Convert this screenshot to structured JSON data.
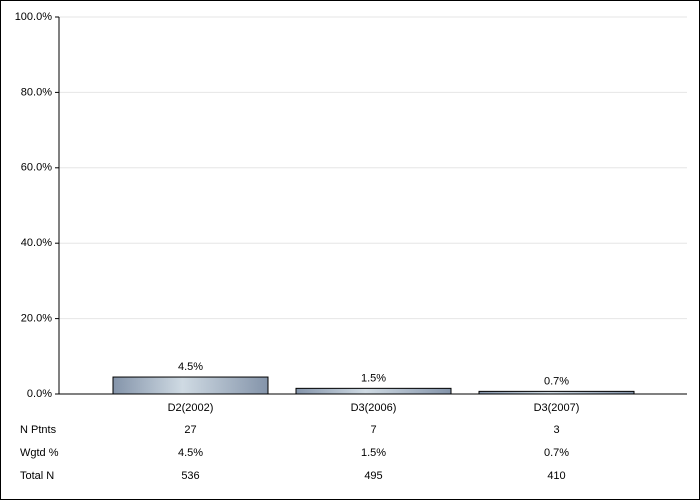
{
  "chart_data": {
    "type": "bar",
    "categories": [
      "D2(2002)",
      "D3(2006)",
      "D3(2007)"
    ],
    "values": [
      4.5,
      1.5,
      0.7
    ],
    "value_labels": [
      "4.5%",
      "1.5%",
      "0.7%"
    ],
    "color": "#a3b1c2",
    "ylim": [
      0,
      100
    ],
    "yticks": [
      {
        "value": 0,
        "label": "0.0%"
      },
      {
        "value": 20,
        "label": "20.0%"
      },
      {
        "value": 40,
        "label": "40.0%"
      },
      {
        "value": 60,
        "label": "60.0%"
      },
      {
        "value": 80,
        "label": "80.0%"
      },
      {
        "value": 100,
        "label": "100.0%"
      }
    ],
    "grid": true
  },
  "table": {
    "rows": [
      {
        "label": "N Ptnts",
        "values": [
          "27",
          "7",
          "3"
        ]
      },
      {
        "label": "Wgtd %",
        "values": [
          "4.5%",
          "1.5%",
          "0.7%"
        ]
      },
      {
        "label": "Total N",
        "values": [
          "536",
          "495",
          "410"
        ]
      }
    ]
  }
}
